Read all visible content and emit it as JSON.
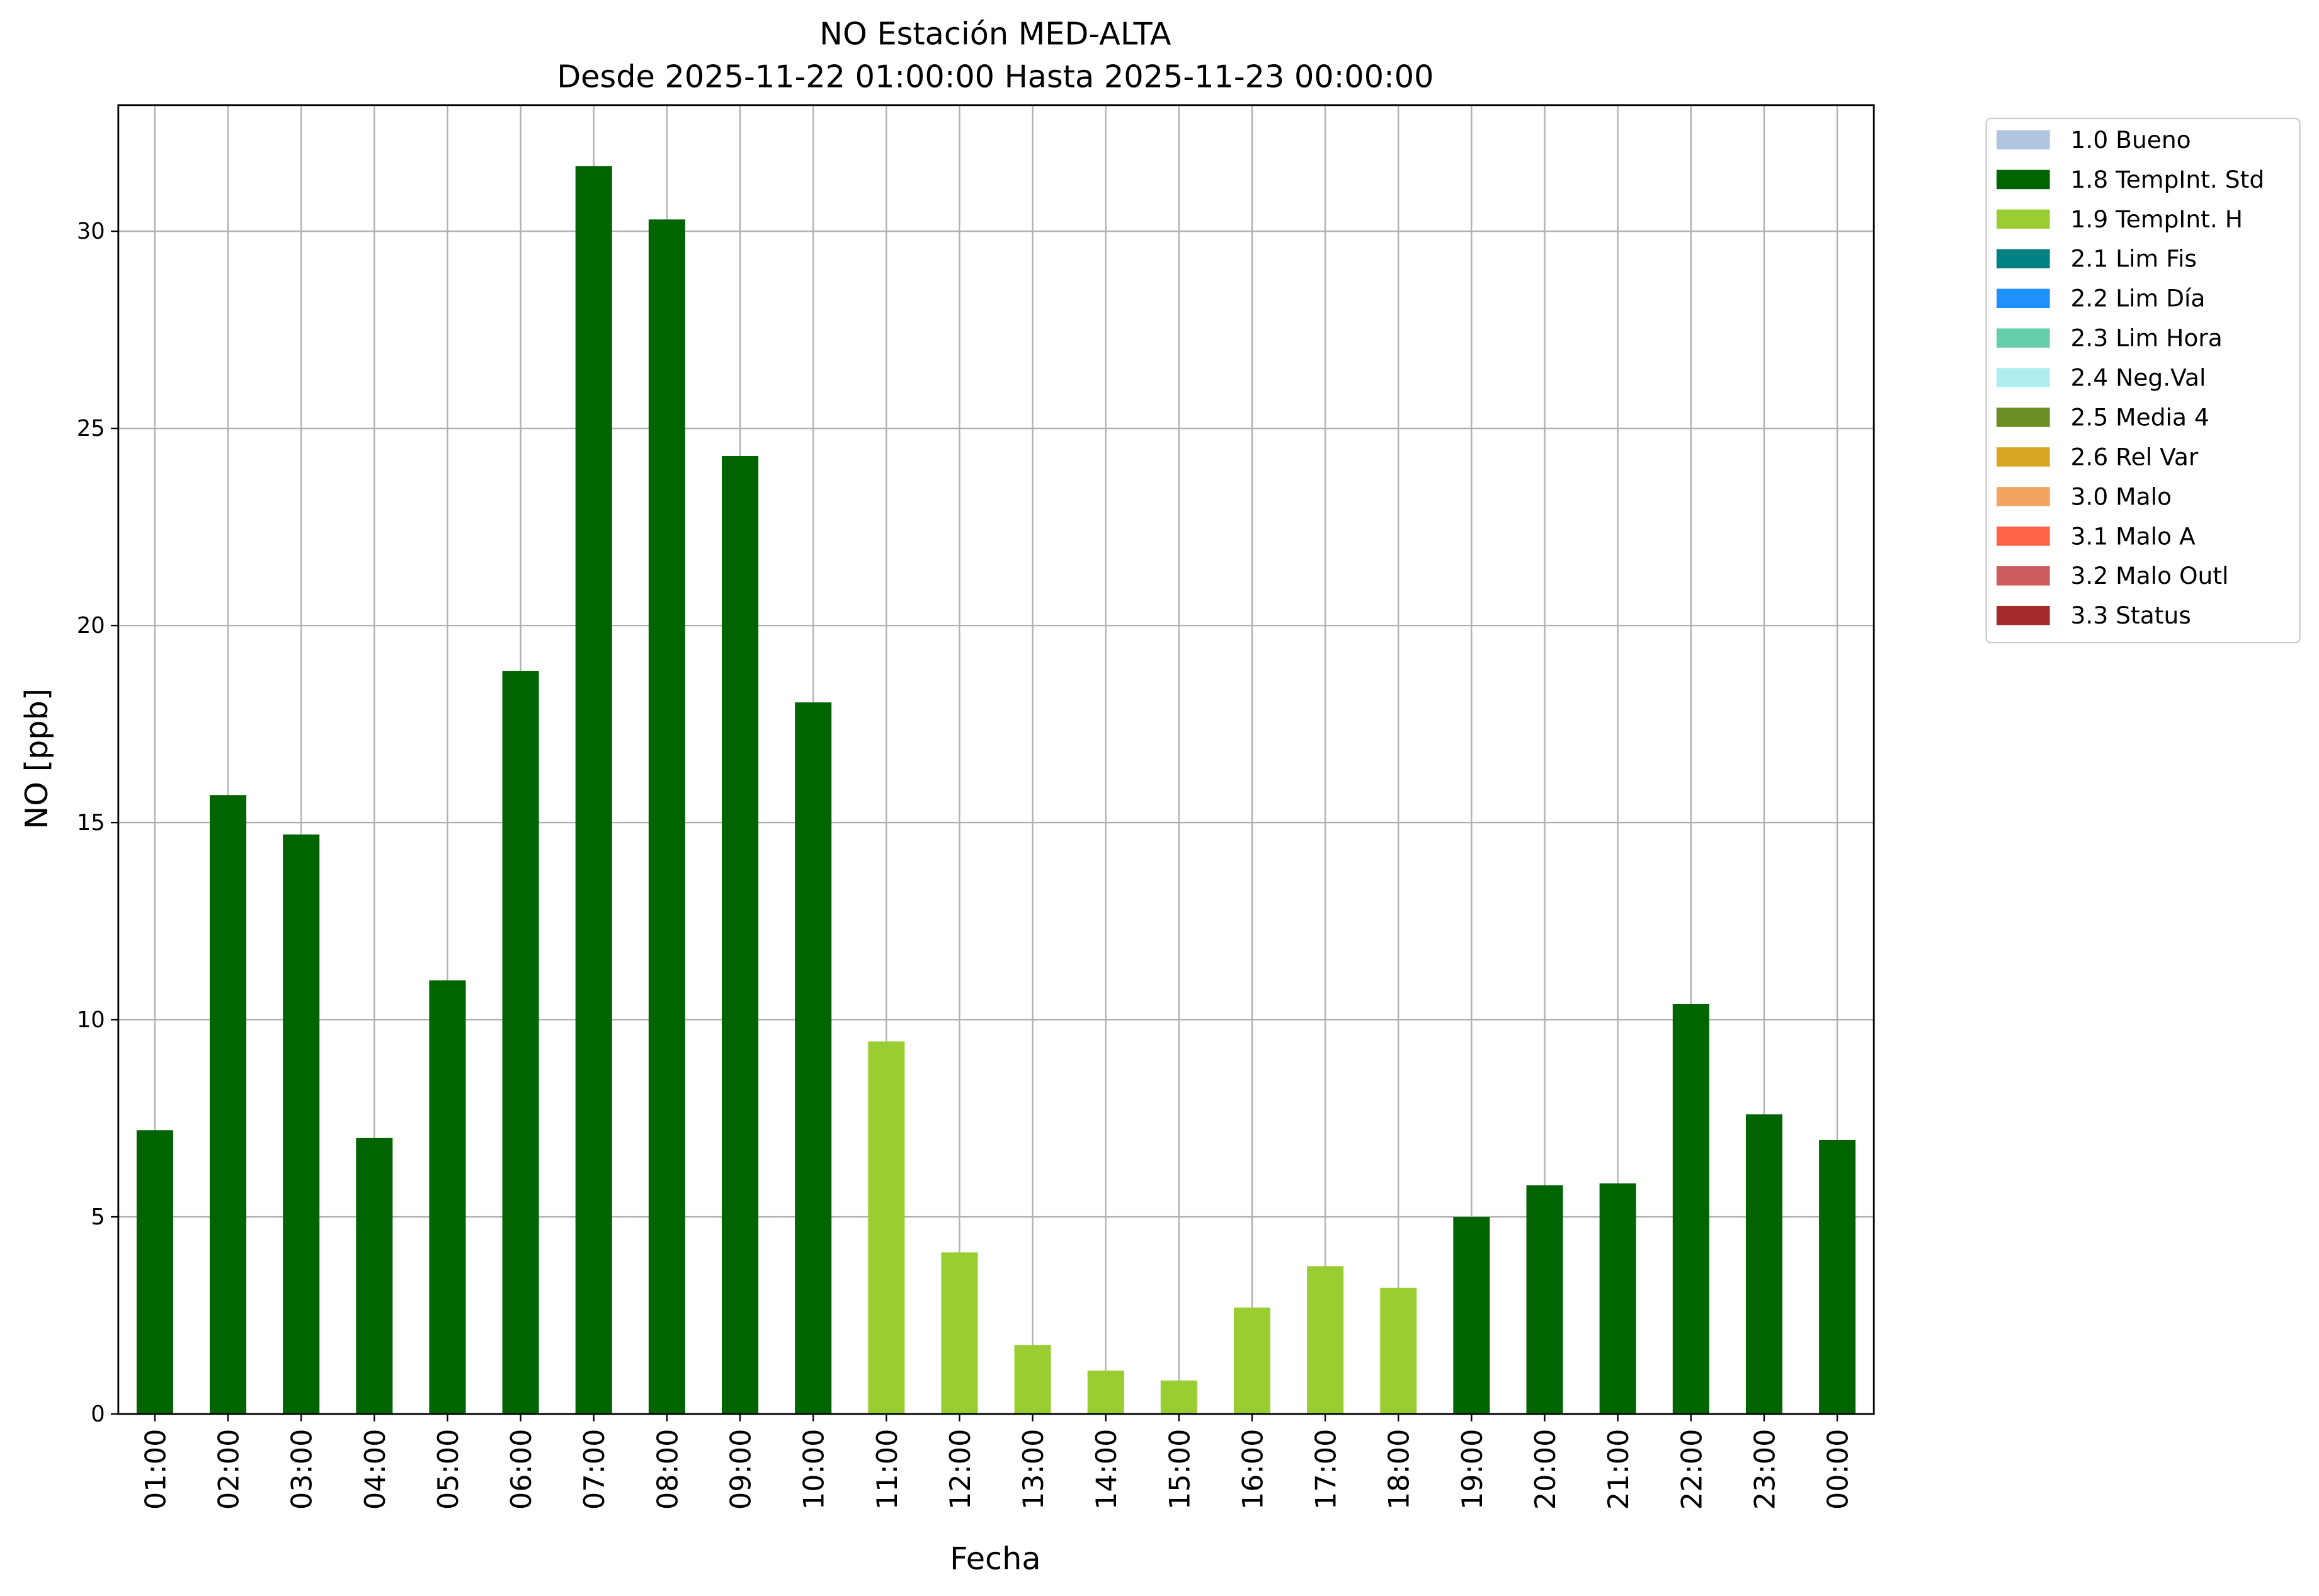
{
  "chart_data": {
    "type": "bar",
    "title": "NO Estación MED-ALTA",
    "subtitle": "Desde 2025-11-22 01:00:00 Hasta 2025-11-23 00:00:00",
    "x_label": "Fecha",
    "y_label": "NO [ppb]",
    "categories": [
      "01:00",
      "02:00",
      "03:00",
      "04:00",
      "05:00",
      "06:00",
      "07:00",
      "08:00",
      "09:00",
      "10:00",
      "11:00",
      "12:00",
      "13:00",
      "14:00",
      "15:00",
      "16:00",
      "17:00",
      "18:00",
      "19:00",
      "20:00",
      "21:00",
      "22:00",
      "23:00",
      "00:00"
    ],
    "series": [
      {
        "name": "1.0 Bueno",
        "color": "#b0c4de",
        "values": [
          null,
          null,
          null,
          null,
          null,
          null,
          null,
          null,
          null,
          null,
          null,
          null,
          null,
          null,
          null,
          null,
          null,
          null,
          null,
          null,
          null,
          null,
          null,
          null
        ]
      },
      {
        "name": "1.8 TempInt. Std",
        "color": "#006400",
        "values": [
          7.2,
          15.7,
          14.7,
          7.0,
          11.0,
          18.85,
          31.65,
          30.3,
          24.3,
          18.05,
          null,
          null,
          null,
          null,
          null,
          null,
          null,
          null,
          5.0,
          5.8,
          5.85,
          10.4,
          7.6,
          6.95
        ]
      },
      {
        "name": "1.9 TempInt. H",
        "color": "#9acd32",
        "values": [
          null,
          null,
          null,
          null,
          null,
          null,
          null,
          null,
          null,
          null,
          9.45,
          4.1,
          1.75,
          1.1,
          0.85,
          2.7,
          3.75,
          3.2,
          null,
          null,
          null,
          null,
          null,
          null
        ]
      },
      {
        "name": "2.1 Lim Fis",
        "color": "#008080",
        "values": [
          null,
          null,
          null,
          null,
          null,
          null,
          null,
          null,
          null,
          null,
          null,
          null,
          null,
          null,
          null,
          null,
          null,
          null,
          null,
          null,
          null,
          null,
          null,
          null
        ]
      },
      {
        "name": "2.2 Lim Día",
        "color": "#1e90ff",
        "values": [
          null,
          null,
          null,
          null,
          null,
          null,
          null,
          null,
          null,
          null,
          null,
          null,
          null,
          null,
          null,
          null,
          null,
          null,
          null,
          null,
          null,
          null,
          null,
          null
        ]
      },
      {
        "name": "2.3 Lim Hora",
        "color": "#66cdaa",
        "values": [
          null,
          null,
          null,
          null,
          null,
          null,
          null,
          null,
          null,
          null,
          null,
          null,
          null,
          null,
          null,
          null,
          null,
          null,
          null,
          null,
          null,
          null,
          null,
          null
        ]
      },
      {
        "name": "2.4 Neg.Val",
        "color": "#afeeee",
        "values": [
          null,
          null,
          null,
          null,
          null,
          null,
          null,
          null,
          null,
          null,
          null,
          null,
          null,
          null,
          null,
          null,
          null,
          null,
          null,
          null,
          null,
          null,
          null,
          null
        ]
      },
      {
        "name": "2.5 Media 4",
        "color": "#6b8e23",
        "values": [
          null,
          null,
          null,
          null,
          null,
          null,
          null,
          null,
          null,
          null,
          null,
          null,
          null,
          null,
          null,
          null,
          null,
          null,
          null,
          null,
          null,
          null,
          null,
          null
        ]
      },
      {
        "name": "2.6 Rel Var",
        "color": "#daa520",
        "values": [
          null,
          null,
          null,
          null,
          null,
          null,
          null,
          null,
          null,
          null,
          null,
          null,
          null,
          null,
          null,
          null,
          null,
          null,
          null,
          null,
          null,
          null,
          null,
          null
        ]
      },
      {
        "name": "3.0 Malo",
        "color": "#f4a460",
        "values": [
          null,
          null,
          null,
          null,
          null,
          null,
          null,
          null,
          null,
          null,
          null,
          null,
          null,
          null,
          null,
          null,
          null,
          null,
          null,
          null,
          null,
          null,
          null,
          null
        ]
      },
      {
        "name": "3.1 Malo A",
        "color": "#ff6347",
        "values": [
          null,
          null,
          null,
          null,
          null,
          null,
          null,
          null,
          null,
          null,
          null,
          null,
          null,
          null,
          null,
          null,
          null,
          null,
          null,
          null,
          null,
          null,
          null,
          null
        ]
      },
      {
        "name": "3.2 Malo Outl",
        "color": "#cd5c5c",
        "values": [
          null,
          null,
          null,
          null,
          null,
          null,
          null,
          null,
          null,
          null,
          null,
          null,
          null,
          null,
          null,
          null,
          null,
          null,
          null,
          null,
          null,
          null,
          null,
          null
        ]
      },
      {
        "name": "3.3 Status",
        "color": "#a52a2a",
        "values": [
          null,
          null,
          null,
          null,
          null,
          null,
          null,
          null,
          null,
          null,
          null,
          null,
          null,
          null,
          null,
          null,
          null,
          null,
          null,
          null,
          null,
          null,
          null,
          null
        ]
      }
    ],
    "ylim": [
      0,
      33.2
    ],
    "yticks": [
      0,
      5,
      10,
      15,
      20,
      25,
      30
    ],
    "grid": true,
    "legend": "outside-upper-right"
  }
}
